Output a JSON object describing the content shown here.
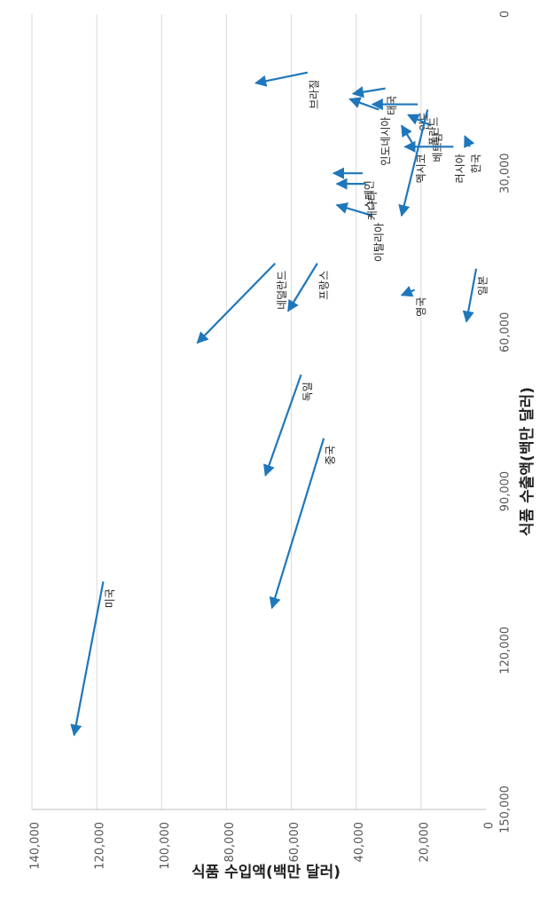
{
  "chart_data": {
    "type": "scatter",
    "subtype": "arrow-scatter",
    "xlabel": "식품 수출액(백만 달러)",
    "ylabel": "식품 수입액(백만 달러)",
    "xlim": [
      0,
      140000
    ],
    "ylim": [
      0,
      150000
    ],
    "x_ticks": [
      0,
      20000,
      40000,
      60000,
      80000,
      100000,
      120000,
      140000
    ],
    "x_tick_labels": [
      "0",
      "20,000",
      "40,000",
      "60,000",
      "80,000",
      "100,000",
      "120,000",
      "140,000"
    ],
    "y_ticks": [
      0,
      30000,
      60000,
      90000,
      120000,
      150000
    ],
    "y_tick_labels": [
      "0",
      "30,000",
      "60,000",
      "90,000",
      "120,000",
      "150,000"
    ],
    "grid": "vertical-lines-at-x-ticks",
    "arrow_color": "#1f77bb",
    "points": [
      {
        "name": "미국",
        "x0": 118000,
        "y0": 107000,
        "x1": 127000,
        "y1": 136000
      },
      {
        "name": "중국",
        "x0": 50000,
        "y0": 80000,
        "x1": 66000,
        "y1": 112000
      },
      {
        "name": "독일",
        "x0": 57000,
        "y0": 68000,
        "x1": 68000,
        "y1": 87000
      },
      {
        "name": "네덜란드",
        "x0": 65000,
        "y0": 47000,
        "x1": 89000,
        "y1": 62000
      },
      {
        "name": "프랑스",
        "x0": 52000,
        "y0": 47000,
        "x1": 61000,
        "y1": 56000
      },
      {
        "name": "이탈리아",
        "x0": 35000,
        "y0": 38000,
        "x1": 46000,
        "y1": 36000
      },
      {
        "name": "캐나다",
        "x0": 37000,
        "y0": 32000,
        "x1": 46000,
        "y1": 32000
      },
      {
        "name": "스페인",
        "x0": 38000,
        "y0": 30000,
        "x1": 47000,
        "y1": 30000
      },
      {
        "name": "인도네시아",
        "x0": 33000,
        "y0": 18000,
        "x1": 42000,
        "y1": 16000
      },
      {
        "name": "태국",
        "x0": 31000,
        "y0": 14000,
        "x1": 41000,
        "y1": 15000
      },
      {
        "name": "브라질",
        "x0": 55000,
        "y0": 11000,
        "x1": 71000,
        "y1": 13000
      },
      {
        "name": "영국",
        "x0": 22000,
        "y0": 52000,
        "x1": 26000,
        "y1": 53000
      },
      {
        "name": "인도",
        "x0": 21000,
        "y0": 17000,
        "x1": 35000,
        "y1": 17000
      },
      {
        "name": "멕시코",
        "x0": 22000,
        "y0": 25000,
        "x1": 26000,
        "y1": 21000
      },
      {
        "name": "베트남",
        "x0": 17000,
        "y0": 21000,
        "x1": 24000,
        "y1": 19000
      },
      {
        "name": "폴란드",
        "x0": 18000,
        "y0": 18000,
        "x1": 26000,
        "y1": 38000
      },
      {
        "name": "러시아",
        "x0": 10000,
        "y0": 25000,
        "x1": 25000,
        "y1": 25000
      },
      {
        "name": "한국",
        "x0": 5000,
        "y0": 25000,
        "x1": 6500,
        "y1": 23000
      },
      {
        "name": "일본",
        "x0": 3000,
        "y0": 48000,
        "x1": 6000,
        "y1": 58000
      }
    ]
  }
}
